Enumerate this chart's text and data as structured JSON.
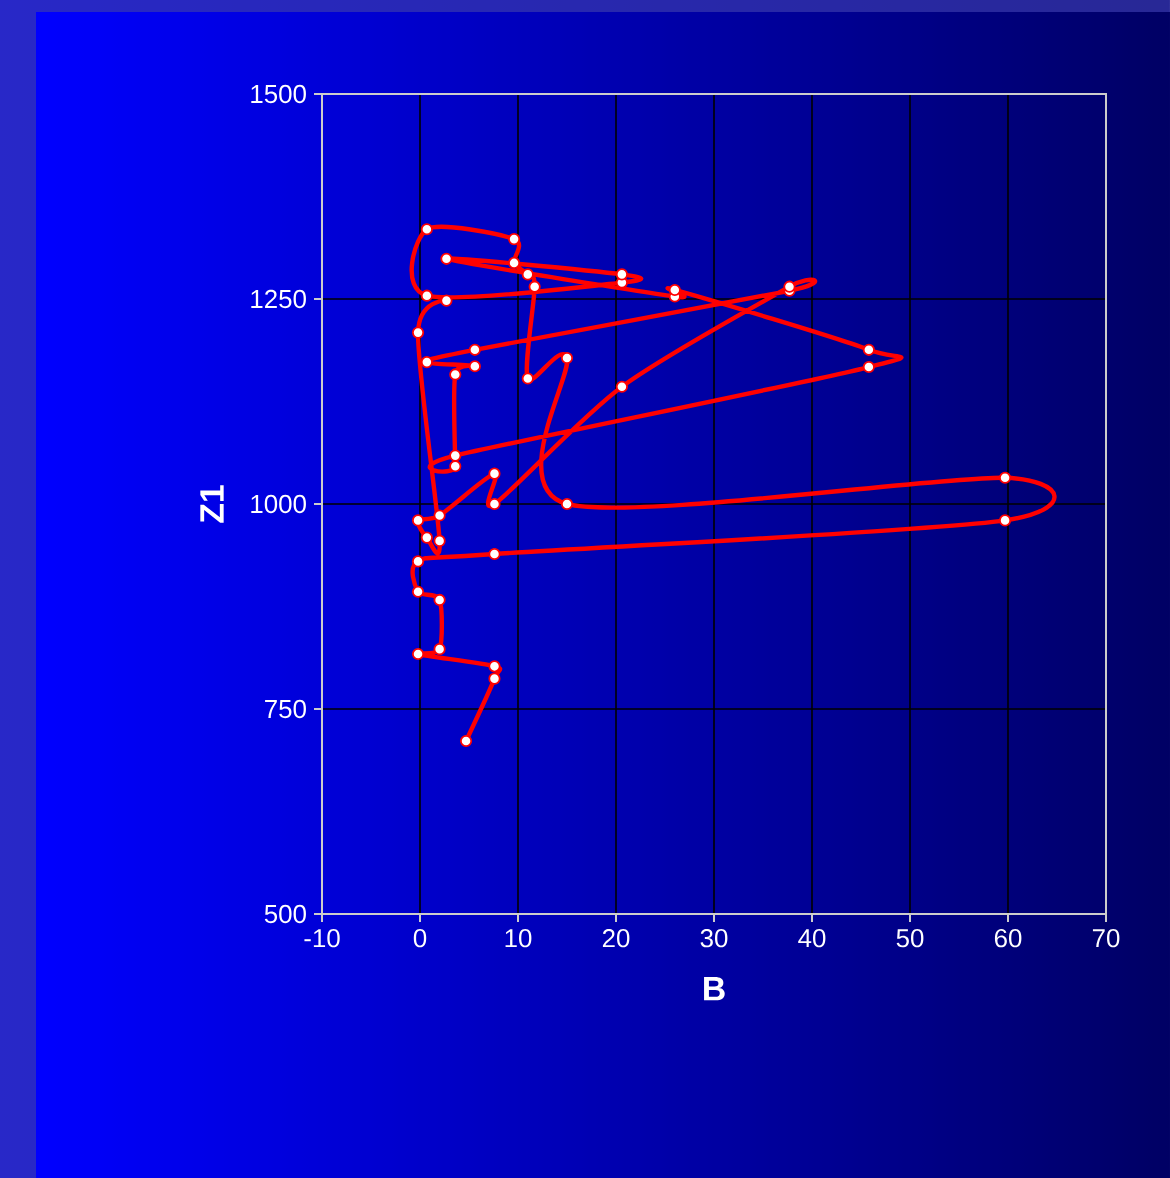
{
  "chart_data": {
    "type": "line",
    "xlabel": "B",
    "ylabel": "Z1",
    "xlim": [
      -10,
      70
    ],
    "xticks": [
      -10,
      0,
      10,
      20,
      30,
      40,
      50,
      60,
      70
    ],
    "ylim": [
      500,
      1500
    ],
    "yticks": [
      500,
      750,
      1000,
      1250,
      1500
    ],
    "grid": true,
    "marker": "circle",
    "line_style": "solid",
    "series": [
      {
        "color": "#ff0000",
        "x": [
          4.7,
          7.6,
          7.6,
          -0.2,
          2.0,
          2.0,
          -0.2,
          -0.2,
          7.6,
          59.7,
          59.7,
          15.0,
          15.0,
          11.0,
          11.7,
          11.0,
          9.6,
          9.6,
          0.7,
          0.7,
          20.6,
          20.6,
          2.7,
          26.0,
          26.0,
          45.8,
          45.8,
          3.6,
          3.6,
          3.6,
          5.6,
          0.7,
          5.6,
          37.7,
          37.7,
          20.6,
          7.6,
          7.6,
          2.0,
          -0.2,
          0.7,
          2.0,
          -0.2,
          2.7
        ],
        "values": [
          711,
          787,
          802,
          817,
          823,
          883,
          893,
          930,
          939,
          980,
          1032,
          1000,
          1178,
          1153,
          1265,
          1280,
          1294,
          1323,
          1335,
          1254,
          1270,
          1280,
          1299,
          1253,
          1261,
          1188,
          1167,
          1059,
          1046,
          1158,
          1168,
          1173,
          1188,
          1260,
          1265,
          1143,
          1000,
          1037,
          986,
          980,
          959,
          955,
          1209,
          1248
        ]
      }
    ]
  }
}
